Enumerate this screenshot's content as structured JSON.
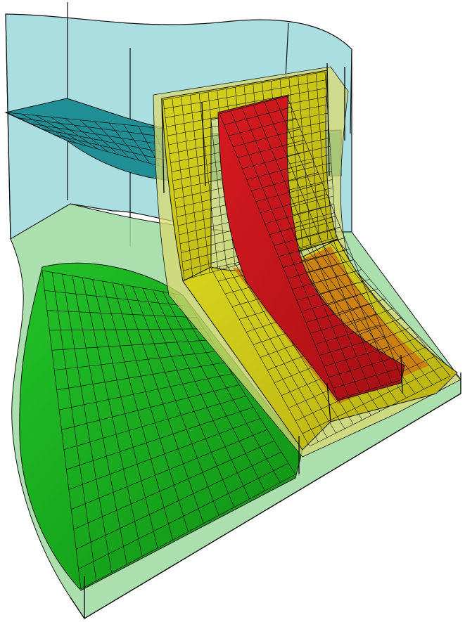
{
  "figure": {
    "description_visible_text": "",
    "colors": {
      "background": "#ffffff",
      "cyan_volume": "#8fd3d6",
      "cyan_sheet": "#1f8f95",
      "green_volume": "#9ed9a0",
      "green_surface": "#17a81c",
      "yellow_volume": "#d9d870",
      "yellow_surface": "#c9c41a",
      "orange_band": "#cc7a10",
      "red_surface": "#c4161c",
      "grid_line": "#111111"
    },
    "parts": [
      {
        "id": "cyan-volume",
        "color_key": "cyan_volume"
      },
      {
        "id": "cyan-sheet-upper",
        "color_key": "cyan_sheet"
      },
      {
        "id": "green-volume",
        "color_key": "green_volume"
      },
      {
        "id": "green-surface",
        "color_key": "green_surface"
      },
      {
        "id": "yellow-volume",
        "color_key": "yellow_volume"
      },
      {
        "id": "yellow-surface",
        "color_key": "yellow_surface"
      },
      {
        "id": "red-surface",
        "color_key": "red_surface"
      }
    ]
  }
}
